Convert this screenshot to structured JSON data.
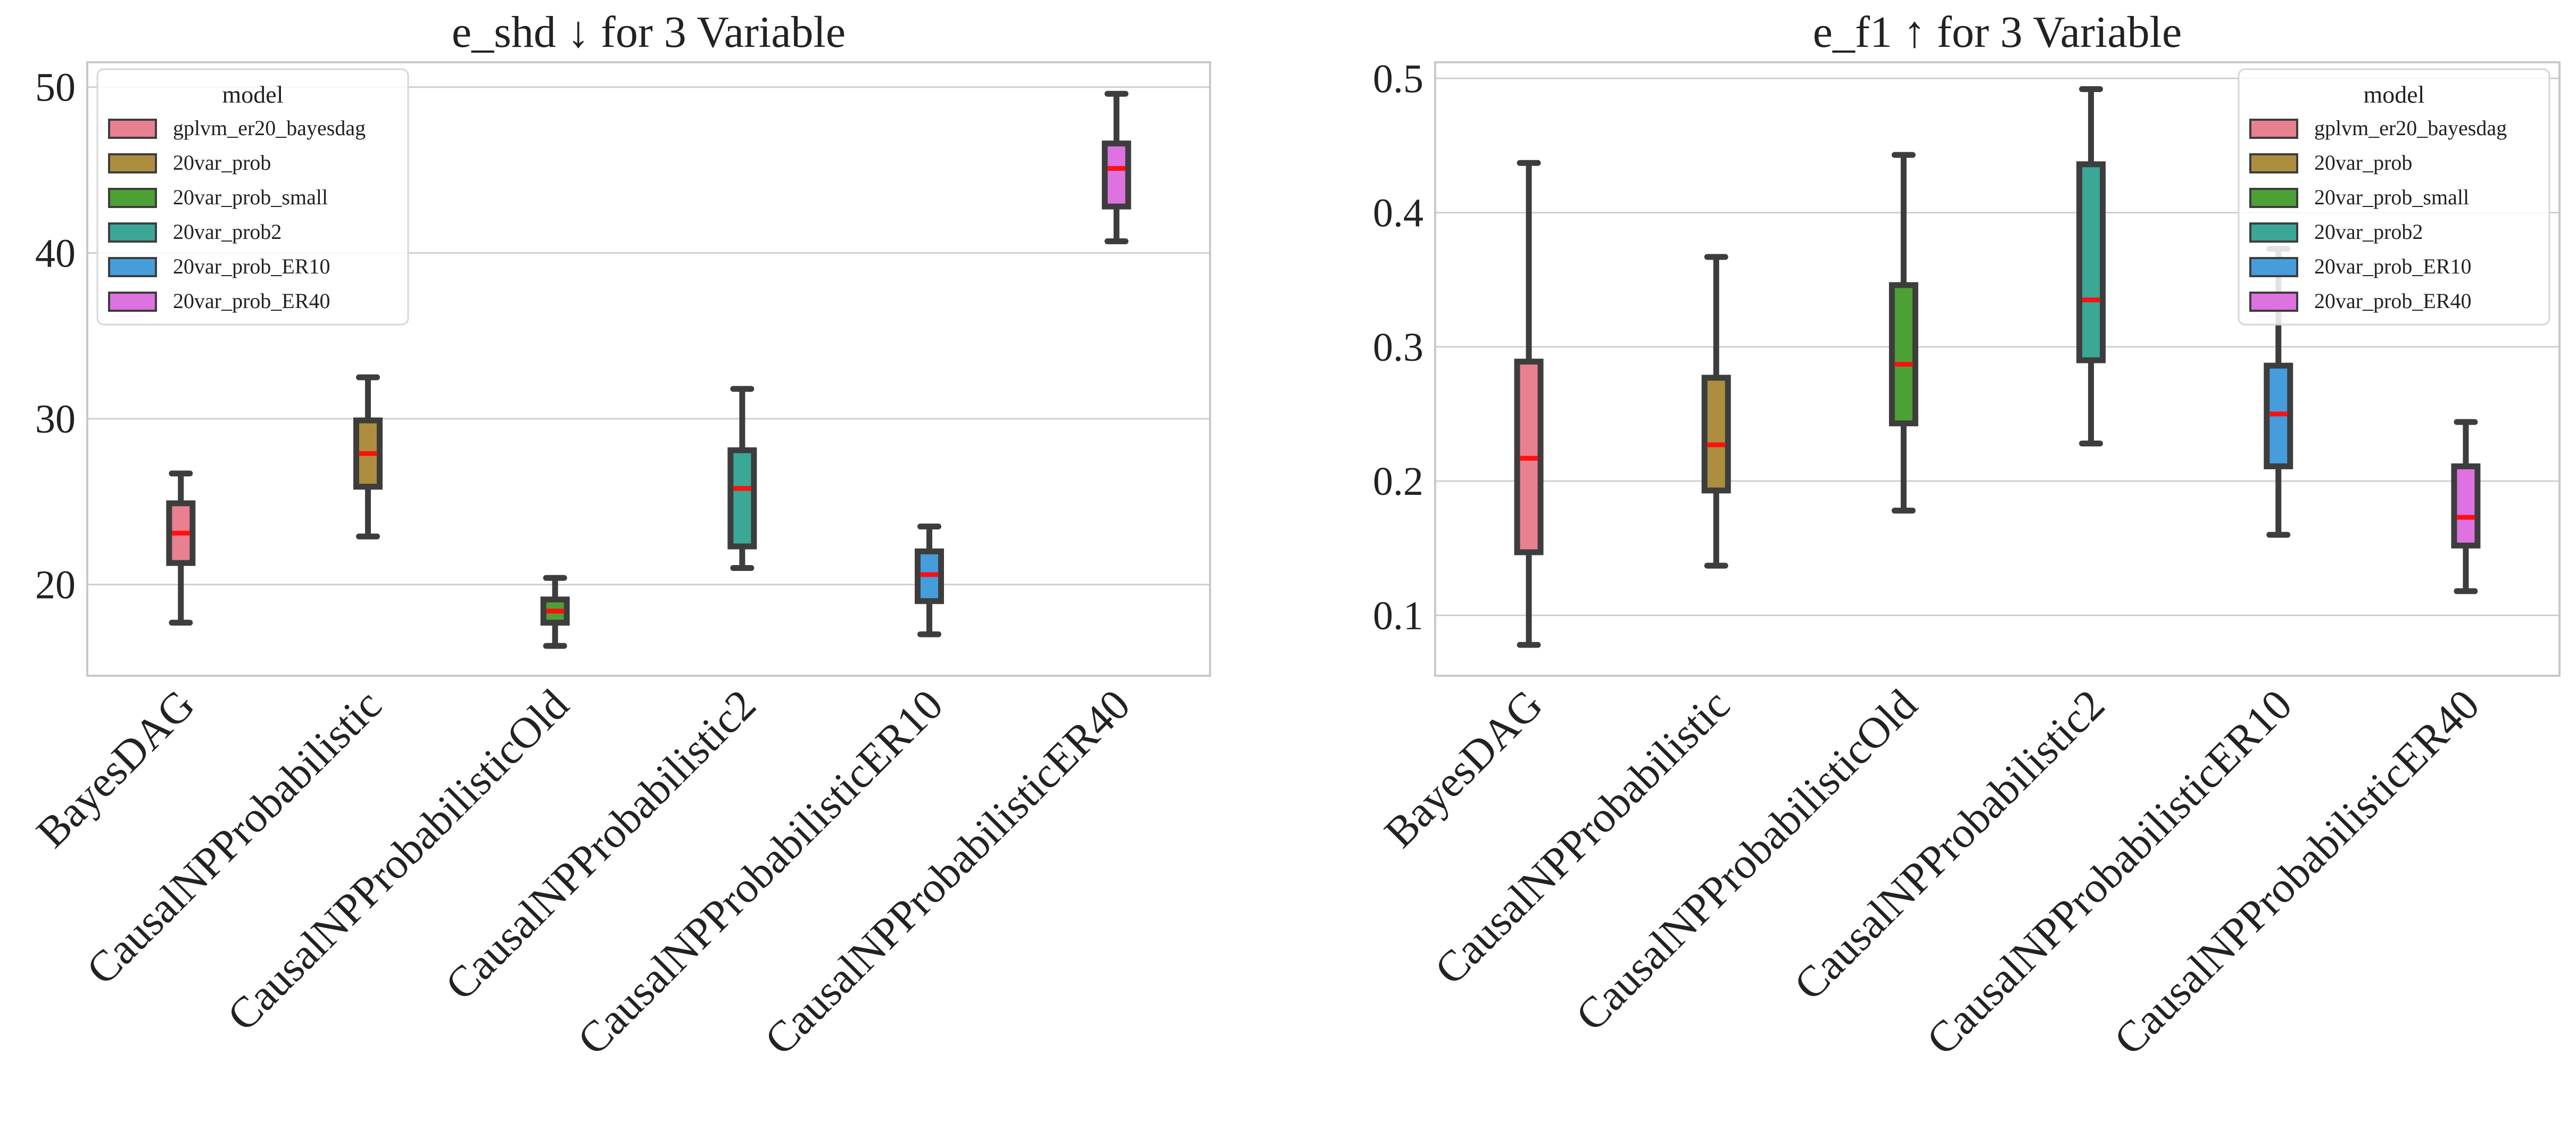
{
  "chart_data": [
    {
      "type": "box",
      "title": "e_shd ↓ for 3 Variable",
      "xlabel": "",
      "ylabel": "",
      "ylim": [
        14.5,
        51.5
      ],
      "yticks": [
        20,
        30,
        40,
        50
      ],
      "grid": true,
      "legend_position": "top-left",
      "categories": [
        "BayesDAG",
        "CausalNPProbabilistic",
        "CausalNPProbabilisticOld",
        "CausalNPProbabilistic2",
        "CausalNPProbabilisticER10",
        "CausalNPProbabilisticER40"
      ],
      "series": [
        {
          "category": "BayesDAG",
          "model": "gplvm_er20_bayesdag",
          "min": 17.7,
          "q1": 21.3,
          "median": 23.1,
          "q3": 24.9,
          "max": 26.7
        },
        {
          "category": "CausalNPProbabilistic",
          "model": "20var_prob",
          "min": 22.9,
          "q1": 25.9,
          "median": 27.9,
          "q3": 29.9,
          "max": 32.5
        },
        {
          "category": "CausalNPProbabilisticOld",
          "model": "20var_prob_small",
          "min": 16.3,
          "q1": 17.7,
          "median": 18.4,
          "q3": 19.1,
          "max": 20.4
        },
        {
          "category": "CausalNPProbabilistic2",
          "model": "20var_prob2",
          "min": 21.0,
          "q1": 22.3,
          "median": 25.8,
          "q3": 28.1,
          "max": 31.8
        },
        {
          "category": "CausalNPProbabilisticER10",
          "model": "20var_prob_ER10",
          "min": 17.0,
          "q1": 19.0,
          "median": 20.6,
          "q3": 22.0,
          "max": 23.5
        },
        {
          "category": "CausalNPProbabilisticER40",
          "model": "20var_prob_ER40",
          "min": 40.7,
          "q1": 42.8,
          "median": 45.1,
          "q3": 46.6,
          "max": 49.6
        }
      ]
    },
    {
      "type": "box",
      "title": "e_f1 ↑ for 3 Variable",
      "xlabel": "",
      "ylabel": "",
      "ylim": [
        0.055,
        0.512
      ],
      "yticks": [
        "0.1",
        "0.2",
        "0.3",
        "0.4",
        "0.5"
      ],
      "grid": true,
      "legend_position": "top-right",
      "categories": [
        "BayesDAG",
        "CausalNPProbabilistic",
        "CausalNPProbabilisticOld",
        "CausalNPProbabilistic2",
        "CausalNPProbabilisticER10",
        "CausalNPProbabilisticER40"
      ],
      "series": [
        {
          "category": "BayesDAG",
          "model": "gplvm_er20_bayesdag",
          "min": 0.078,
          "q1": 0.147,
          "median": 0.217,
          "q3": 0.289,
          "max": 0.437
        },
        {
          "category": "CausalNPProbabilistic",
          "model": "20var_prob",
          "min": 0.137,
          "q1": 0.193,
          "median": 0.227,
          "q3": 0.277,
          "max": 0.367
        },
        {
          "category": "CausalNPProbabilisticOld",
          "model": "20var_prob_small",
          "min": 0.178,
          "q1": 0.243,
          "median": 0.287,
          "q3": 0.346,
          "max": 0.443
        },
        {
          "category": "CausalNPProbabilistic2",
          "model": "20var_prob2",
          "min": 0.228,
          "q1": 0.29,
          "median": 0.335,
          "q3": 0.436,
          "max": 0.492
        },
        {
          "category": "CausalNPProbabilisticER10",
          "model": "20var_prob_ER10",
          "min": 0.16,
          "q1": 0.211,
          "median": 0.25,
          "q3": 0.286,
          "max": 0.373
        },
        {
          "category": "CausalNPProbabilisticER40",
          "model": "20var_prob_ER40",
          "min": 0.118,
          "q1": 0.152,
          "median": 0.173,
          "q3": 0.211,
          "max": 0.244
        }
      ]
    }
  ],
  "legend": {
    "title": "model",
    "entries": [
      {
        "label": "gplvm_er20_bayesdag",
        "color": "#e8808f"
      },
      {
        "label": "20var_prob",
        "color": "#ad8e3f"
      },
      {
        "label": "20var_prob_small",
        "color": "#4da036"
      },
      {
        "label": "20var_prob2",
        "color": "#3aa797"
      },
      {
        "label": "20var_prob_ER10",
        "color": "#459ddc"
      },
      {
        "label": "20var_prob_ER40",
        "color": "#dd72e0"
      }
    ]
  },
  "colors": {
    "median": "#ff1010",
    "box_edge": "#3d3d3d",
    "grid": "#cfcfcf",
    "frame": "#c8c8c8"
  }
}
